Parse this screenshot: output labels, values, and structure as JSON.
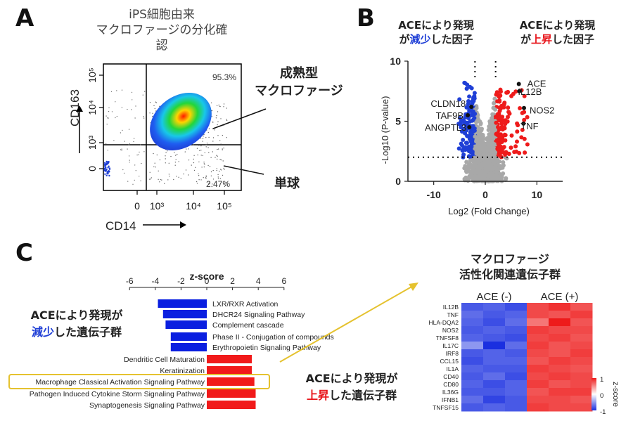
{
  "panel_a": {
    "letter": "A",
    "title_line1": "iPS細胞由来",
    "title_line2": "マクロファージの分化確認",
    "annot_mature_line1": "成熟型",
    "annot_mature_line2": "マクロファージ",
    "annot_mono": "単球"
  },
  "panel_b": {
    "letter": "B",
    "down_line1": "ACEにより発現",
    "down_line2_pre": "が",
    "down_line2_hl": "減少",
    "down_line2_post": "した因子",
    "up_line1": "ACEにより発現",
    "up_line2_pre": "が",
    "up_line2_hl": "上昇",
    "up_line2_post": "した因子"
  },
  "panel_c": {
    "letter": "C",
    "left_line1": "ACEにより発現が",
    "left_line2_hl": "減少",
    "left_line2_post": "した遺伝子群",
    "right_line1": "ACEにより発現が",
    "right_line2_hl": "上昇",
    "right_line2_post": "した遺伝子群",
    "heat_title_line1": "マクロファージ",
    "heat_title_line2": "活性化関連遺伝子群"
  },
  "colors": {
    "blue_accent": "#1f3fd6",
    "red_accent": "#e8151b",
    "highlight_box": "#e5c22f"
  },
  "chart_data": [
    {
      "id": "flow",
      "type": "scatter",
      "xlabel": "CD14",
      "ylabel": "CD163",
      "x_ticks": [
        "0",
        "10³",
        "10⁴",
        "10⁵"
      ],
      "y_ticks": [
        "10⁵",
        "10⁴",
        "10³",
        "0"
      ],
      "quadrant_labels": [
        "95.3%",
        "2.47%"
      ],
      "quadrants": [
        {
          "label": "95.3%",
          "value": 95.3
        },
        {
          "label": "2.47%",
          "value": 2.47
        }
      ]
    },
    {
      "id": "volcano",
      "type": "scatter",
      "xlabel": "Log2 (Fold Change)",
      "ylabel": "-Log10 (P-value)",
      "xlim": [
        -15,
        15
      ],
      "ylim": [
        0,
        10
      ],
      "x_ticks": [
        -10,
        0,
        10
      ],
      "y_ticks": [
        0,
        5,
        10
      ],
      "thresholds": {
        "fc": [
          -2,
          2
        ],
        "p": 2
      },
      "labeled_genes": [
        {
          "name": "ACE",
          "x": 6.5,
          "y": 8.1
        },
        {
          "name": "IL12B",
          "x": 6.6,
          "y": 7.5
        },
        {
          "name": "NOS2",
          "x": 7.5,
          "y": 6.1
        },
        {
          "name": "TNF",
          "x": 7.4,
          "y": 4.8
        },
        {
          "name": "CLDN18",
          "x": -2.7,
          "y": 6.2
        },
        {
          "name": "TAF9B",
          "x": -3.4,
          "y": 5.5
        },
        {
          "name": "ANGPTL3",
          "x": -3.1,
          "y": 4.5
        }
      ]
    },
    {
      "id": "pathways",
      "type": "bar",
      "orientation": "horizontal",
      "xlabel": "z-score",
      "xlim": [
        -6,
        6
      ],
      "x_ticks": [
        -6,
        -4,
        -2,
        0,
        2,
        4,
        6
      ],
      "categories": [
        "LXR/RXR Activation",
        "DHCR24 Signaling Pathway",
        "Complement cascade",
        "Phase II - Conjugation of compounds",
        "Erythropoietin Signaling Pathway",
        "Dendritic Cell Maturation",
        "Keratinization",
        "Macrophage Classical Activation Signaling Pathway",
        "Pathogen Induced Cytokine Storm Signaling Pathway",
        "Synaptogenesis Signaling Pathway"
      ],
      "values": [
        -3.8,
        -3.4,
        -3.2,
        -2.8,
        -2.8,
        3.5,
        3.5,
        3.7,
        3.8,
        3.8
      ],
      "highlighted": "Macrophage Classical Activation Signaling Pathway"
    },
    {
      "id": "heatmap",
      "type": "heatmap",
      "columns_groups": [
        "ACE (-)",
        "ACE (+)"
      ],
      "rows": [
        "IL12B",
        "TNF",
        "HLA-DQA2",
        "NOS2",
        "TNFSF8",
        "IL17C",
        "IRF8",
        "CCL15",
        "IL1A",
        "CD40",
        "CD80",
        "IL36G",
        "IFNB1",
        "TNFSF15"
      ],
      "values": [
        [
          -0.8,
          -0.75,
          -0.85,
          0.8,
          0.9,
          0.75
        ],
        [
          -0.7,
          -0.8,
          -0.75,
          0.8,
          0.75,
          0.85
        ],
        [
          -0.75,
          -0.85,
          -0.7,
          0.6,
          1.0,
          0.75
        ],
        [
          -0.8,
          -0.75,
          -0.8,
          0.85,
          0.8,
          0.8
        ],
        [
          -0.75,
          -0.8,
          -0.85,
          0.8,
          0.85,
          0.75
        ],
        [
          -0.5,
          -1.0,
          -0.7,
          0.85,
          0.75,
          0.8
        ],
        [
          -0.8,
          -0.75,
          -0.8,
          0.8,
          0.75,
          0.85
        ],
        [
          -0.85,
          -0.75,
          -0.75,
          0.75,
          0.85,
          0.8
        ],
        [
          -0.75,
          -0.8,
          -0.8,
          0.85,
          0.8,
          0.75
        ],
        [
          -0.8,
          -0.7,
          -0.85,
          0.8,
          0.85,
          0.8
        ],
        [
          -0.75,
          -0.85,
          -0.75,
          0.85,
          0.75,
          0.8
        ],
        [
          -0.8,
          -0.8,
          -0.75,
          0.75,
          0.85,
          0.85
        ],
        [
          -0.7,
          -0.9,
          -0.8,
          0.8,
          0.8,
          0.75
        ],
        [
          -0.8,
          -0.75,
          -0.8,
          0.85,
          0.8,
          0.8
        ]
      ],
      "colorbar_label": "z-score",
      "colorbar_ticks": [
        1,
        0,
        -1
      ],
      "scale": [
        -1,
        1
      ],
      "colors": {
        "low": "#1a2fe0",
        "mid": "#ffffff",
        "high": "#ee1b1b"
      }
    }
  ]
}
